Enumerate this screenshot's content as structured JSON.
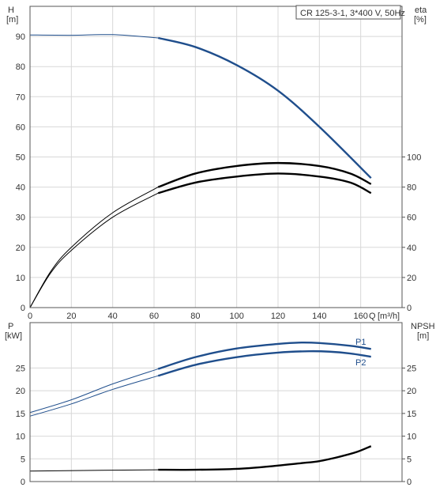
{
  "chart_data": [
    {
      "type": "line",
      "panel": "head-efficiency",
      "title_box": "CR 125-3-1, 3*400 V, 50Hz",
      "left_axis": {
        "symbol": "H",
        "unit": "[m]",
        "ticks": [
          0,
          10,
          20,
          30,
          40,
          50,
          60,
          70,
          80,
          90
        ],
        "ylim": [
          0,
          100
        ]
      },
      "right_axis": {
        "symbol": "eta",
        "unit": "[%]",
        "ticks": [
          0,
          20,
          40,
          60,
          80,
          100
        ],
        "ylim": [
          0,
          100
        ]
      },
      "x_axis": {
        "symbol": "Q",
        "unit": "[m³/h]",
        "ticks": [
          0,
          20,
          40,
          60,
          80,
          100,
          120,
          140,
          160
        ],
        "xlim": [
          0,
          180
        ]
      },
      "grid": true,
      "series": [
        {
          "id": "H",
          "axis": "left",
          "color": "#1f4e8c",
          "points": [
            [
              0,
              90.5
            ],
            [
              20,
              90.4
            ],
            [
              40,
              90.6
            ],
            [
              62,
              89.5
            ],
            [
              80,
              86.5
            ],
            [
              100,
              80.5
            ],
            [
              120,
              72
            ],
            [
              140,
              60
            ],
            [
              165,
              43
            ]
          ]
        },
        {
          "id": "eta-upper",
          "axis": "right",
          "color": "#000000",
          "points": [
            [
              0,
              0
            ],
            [
              10,
              24
            ],
            [
              20,
              40
            ],
            [
              40,
              63
            ],
            [
              62,
              80
            ],
            [
              80,
              89
            ],
            [
              100,
              94
            ],
            [
              120,
              96
            ],
            [
              140,
              94
            ],
            [
              155,
              89
            ],
            [
              165,
              82
            ]
          ]
        },
        {
          "id": "eta-lower",
          "axis": "right",
          "color": "#000000",
          "points": [
            [
              0,
              0
            ],
            [
              10,
              23
            ],
            [
              20,
              38
            ],
            [
              40,
              60
            ],
            [
              62,
              76
            ],
            [
              80,
              83
            ],
            [
              100,
              87
            ],
            [
              120,
              89
            ],
            [
              140,
              87
            ],
            [
              155,
              83
            ],
            [
              165,
              76
            ]
          ]
        }
      ]
    },
    {
      "type": "line",
      "panel": "power-npsh",
      "left_axis": {
        "symbol": "P",
        "unit": "[kW]",
        "ticks": [
          0,
          5,
          10,
          15,
          20,
          25
        ],
        "ylim": [
          0,
          35
        ]
      },
      "right_axis": {
        "symbol": "NPSH",
        "unit": "[m]",
        "ticks": [
          0,
          5,
          10,
          15,
          20,
          25
        ],
        "ylim": [
          0,
          35
        ]
      },
      "x_axis": {
        "xlim": [
          0,
          180
        ]
      },
      "grid": true,
      "series": [
        {
          "id": "P1",
          "name": "P1",
          "axis": "left",
          "color": "#1f4e8c",
          "points": [
            [
              0,
              15.2
            ],
            [
              20,
              18
            ],
            [
              40,
              21.5
            ],
            [
              62,
              24.8
            ],
            [
              80,
              27.4
            ],
            [
              100,
              29.3
            ],
            [
              120,
              30.3
            ],
            [
              130,
              30.6
            ],
            [
              140,
              30.5
            ],
            [
              155,
              29.9
            ],
            [
              165,
              29.2
            ]
          ]
        },
        {
          "id": "P2",
          "name": "P2",
          "axis": "left",
          "color": "#1f4e8c",
          "points": [
            [
              0,
              14.4
            ],
            [
              20,
              17.1
            ],
            [
              40,
              20.3
            ],
            [
              62,
              23.3
            ],
            [
              80,
              25.7
            ],
            [
              100,
              27.4
            ],
            [
              120,
              28.4
            ],
            [
              135,
              28.7
            ],
            [
              145,
              28.6
            ],
            [
              155,
              28.2
            ],
            [
              165,
              27.5
            ]
          ]
        },
        {
          "id": "NPSH",
          "axis": "right",
          "color": "#000000",
          "points": [
            [
              0,
              2.3
            ],
            [
              40,
              2.5
            ],
            [
              62,
              2.6
            ],
            [
              80,
              2.6
            ],
            [
              100,
              2.8
            ],
            [
              115,
              3.3
            ],
            [
              130,
              4
            ],
            [
              140,
              4.5
            ],
            [
              150,
              5.5
            ],
            [
              158,
              6.5
            ],
            [
              165,
              7.8
            ]
          ]
        }
      ]
    }
  ]
}
